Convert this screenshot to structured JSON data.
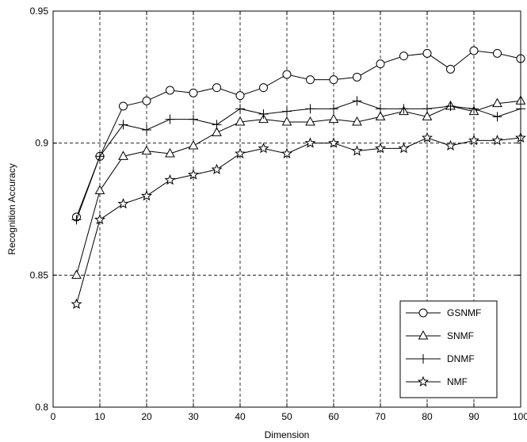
{
  "chart_data": {
    "type": "line",
    "title": "",
    "xlabel": "Dimension",
    "ylabel": "Recognition Accuracy",
    "xlim": [
      0,
      100
    ],
    "ylim": [
      0.8,
      0.95
    ],
    "x_ticks": [
      0,
      10,
      20,
      30,
      40,
      50,
      60,
      70,
      80,
      90,
      100
    ],
    "y_ticks": [
      0.8,
      0.85,
      0.9,
      0.95
    ],
    "y_tick_labels": [
      "0.8",
      "0.85",
      "0.9",
      "0.95"
    ],
    "grid": true,
    "legend_position": "bottom-right",
    "x": [
      5,
      10,
      15,
      20,
      25,
      30,
      35,
      40,
      45,
      50,
      55,
      60,
      65,
      70,
      75,
      80,
      85,
      90,
      95,
      100
    ],
    "series": [
      {
        "name": "GSNMF",
        "marker": "circle",
        "values": [
          0.872,
          0.895,
          0.914,
          0.916,
          0.92,
          0.919,
          0.921,
          0.918,
          0.921,
          0.926,
          0.924,
          0.924,
          0.925,
          0.93,
          0.933,
          0.934,
          0.928,
          0.935,
          0.934,
          0.932
        ]
      },
      {
        "name": "SNMF",
        "marker": "triangle",
        "values": [
          0.85,
          0.882,
          0.895,
          0.897,
          0.896,
          0.899,
          0.904,
          0.908,
          0.909,
          0.908,
          0.908,
          0.909,
          0.908,
          0.91,
          0.912,
          0.91,
          0.914,
          0.912,
          0.915,
          0.916
        ]
      },
      {
        "name": "DNMF",
        "marker": "plus",
        "values": [
          0.871,
          0.895,
          0.907,
          0.905,
          0.909,
          0.909,
          0.907,
          0.913,
          0.911,
          0.912,
          0.913,
          0.913,
          0.916,
          0.913,
          0.913,
          0.913,
          0.914,
          0.913,
          0.91,
          0.913
        ]
      },
      {
        "name": "NMF",
        "marker": "star",
        "values": [
          0.839,
          0.871,
          0.877,
          0.88,
          0.886,
          0.888,
          0.89,
          0.896,
          0.898,
          0.896,
          0.9,
          0.9,
          0.897,
          0.898,
          0.898,
          0.902,
          0.899,
          0.901,
          0.901,
          0.902
        ]
      }
    ]
  }
}
